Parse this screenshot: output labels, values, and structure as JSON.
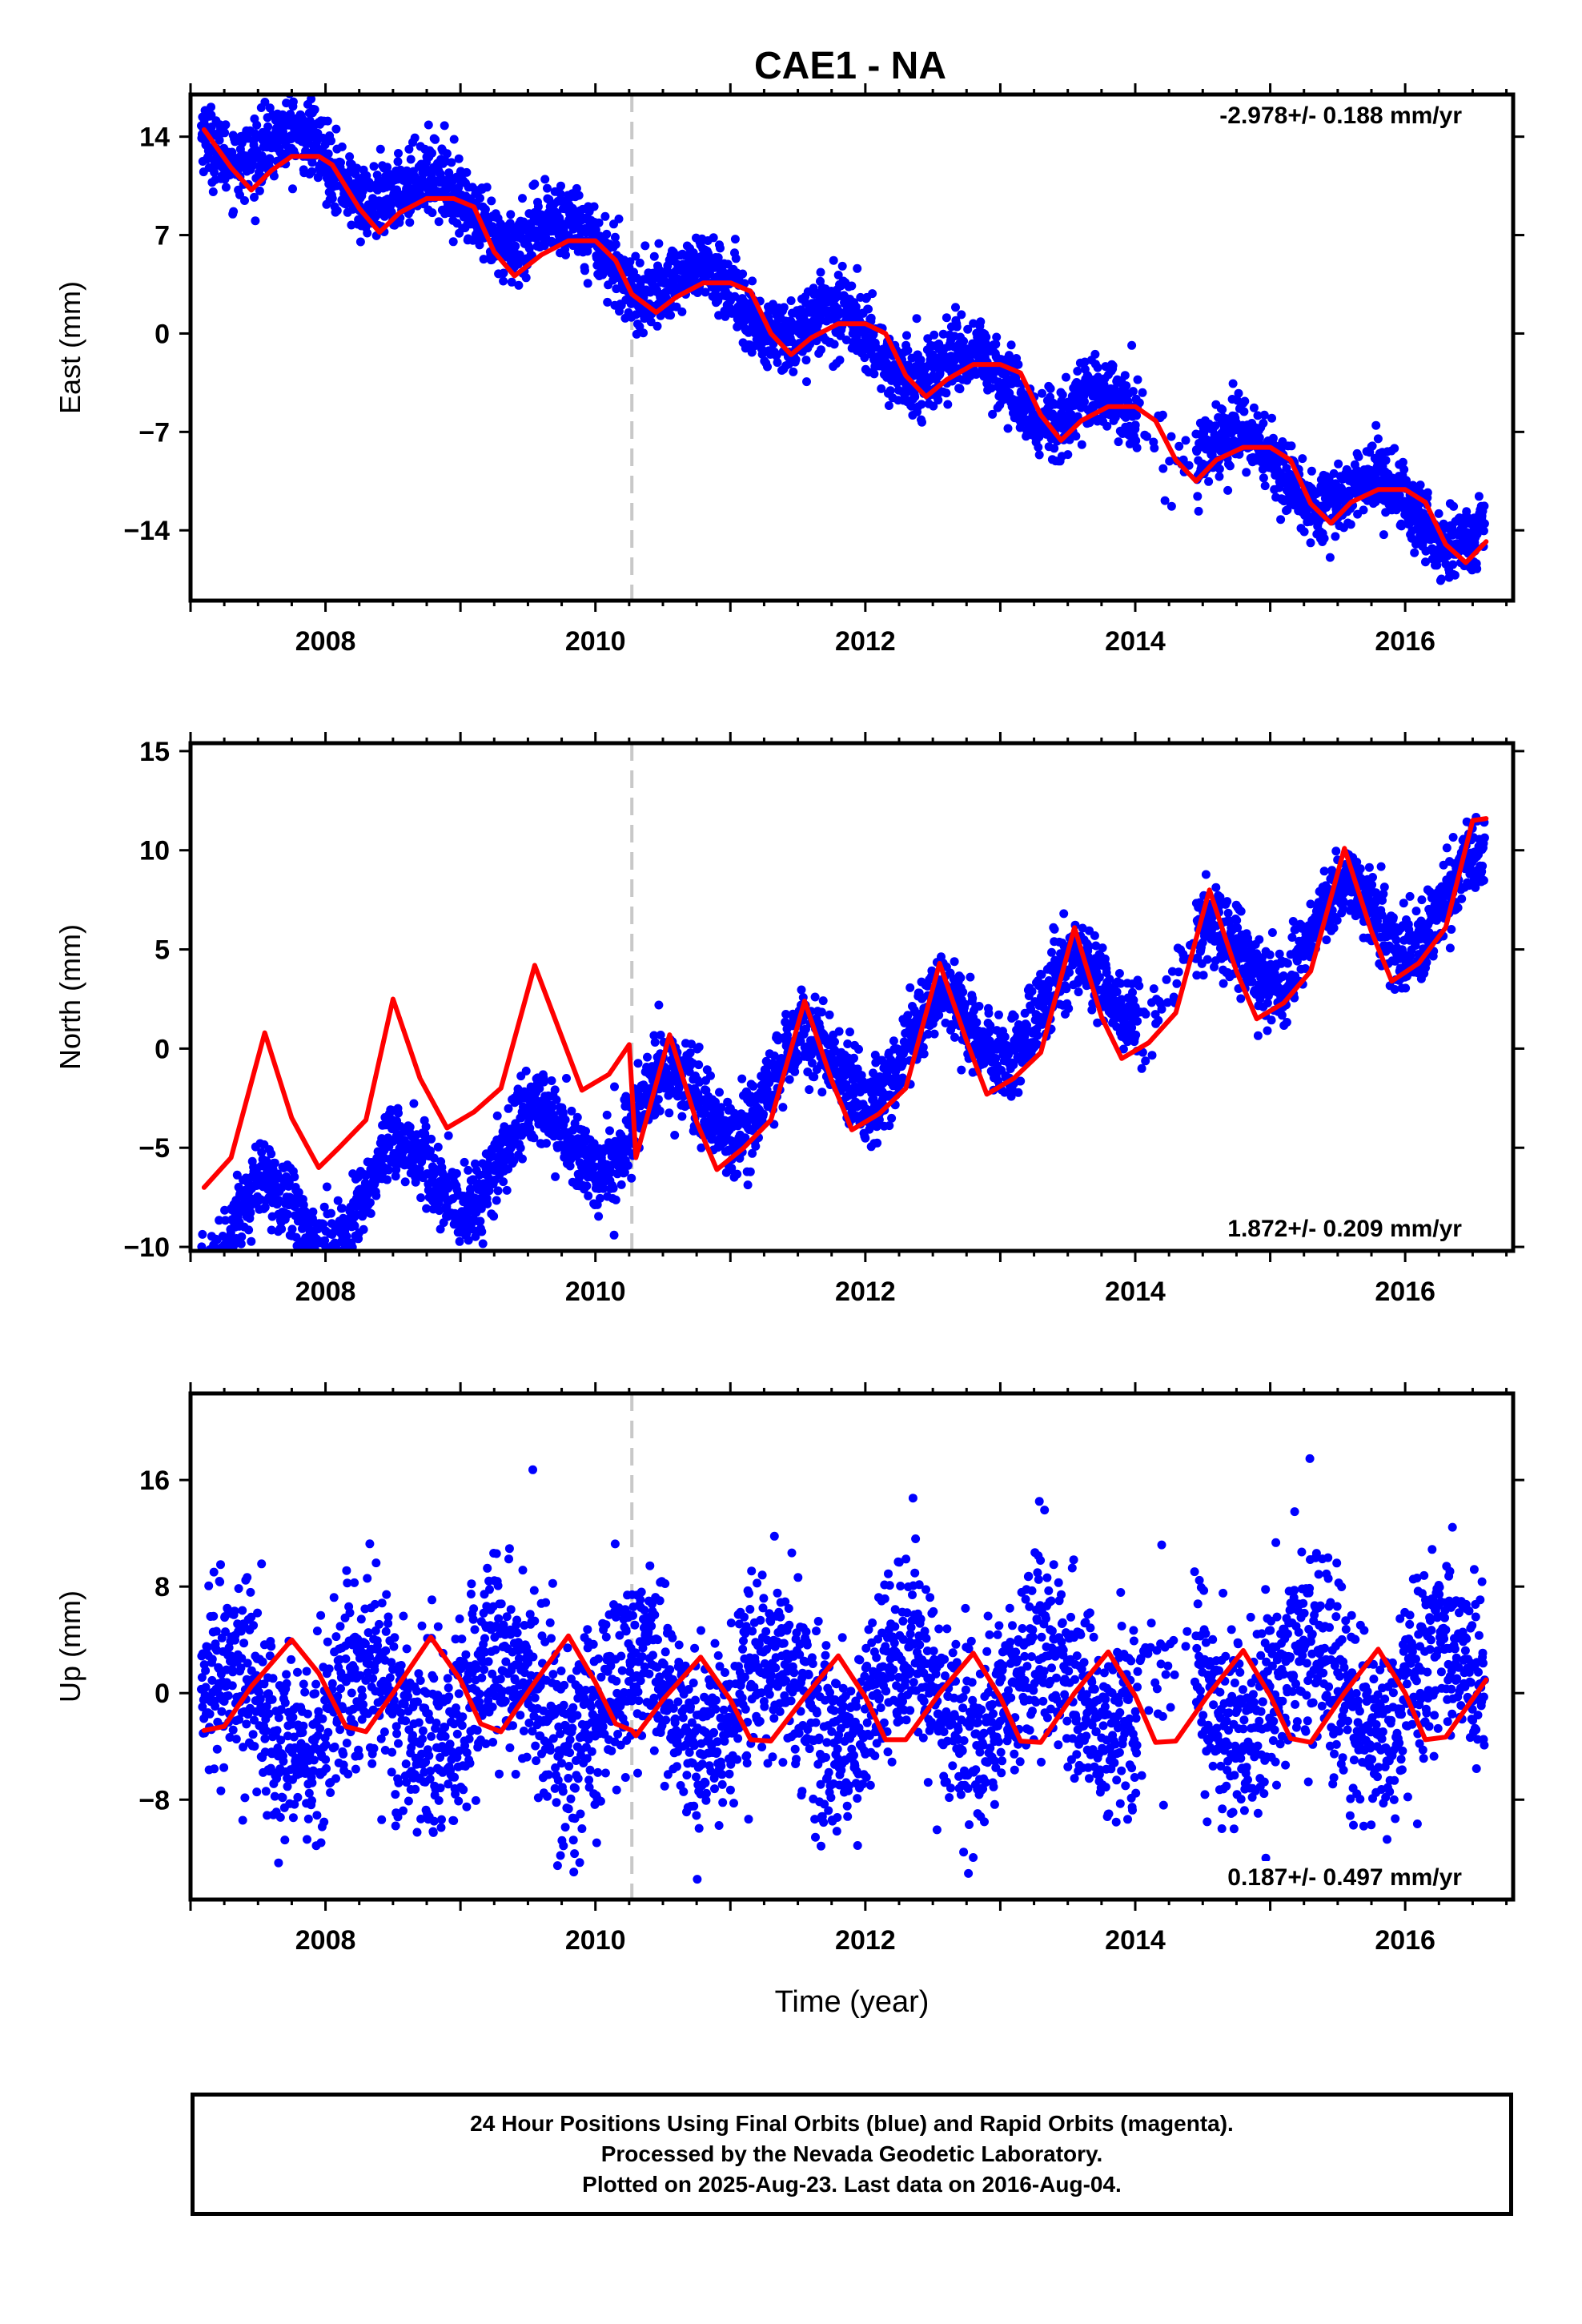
{
  "title": "CAE1 - NA",
  "colors": {
    "data": "#0000ff",
    "model": "#ff0000",
    "offset_line": "#c8c8c8",
    "frame": "#000000"
  },
  "chart_data": [
    {
      "type": "scatter",
      "component": "east",
      "ylabel": "East (mm)",
      "xlabel": "",
      "rate_label": "-2.978+/- 0.188 mm/yr",
      "rate_position": "top-right",
      "xlim": [
        2007.0,
        2016.8
      ],
      "ylim": [
        -19,
        17
      ],
      "xticks": [
        2008,
        2010,
        2012,
        2014,
        2016
      ],
      "yticks": [
        -14,
        -7,
        0,
        7,
        14
      ],
      "ytick_labels": [
        "−14",
        "−7",
        "0",
        "7",
        "14"
      ],
      "offset_epoch": 2010.27,
      "trend": {
        "rate": -2.978,
        "ref_epoch": 2012.0,
        "ref_value": 0.0
      },
      "annual": {
        "cos": 0.7,
        "sin": -1.6
      },
      "semiannual": {
        "cos": 0.0,
        "sin": 0.0
      },
      "noise_sd": 1.3,
      "model_curve": {
        "x": [
          2007.1,
          2007.3,
          2007.45,
          2007.6,
          2007.75,
          2007.95,
          2008.05,
          2008.25,
          2008.4,
          2008.55,
          2008.75,
          2008.95,
          2009.1,
          2009.25,
          2009.4,
          2009.6,
          2009.8,
          2010.0,
          2010.15,
          2010.27,
          2010.45,
          2010.6,
          2010.8,
          2011.0,
          2011.15,
          2011.3,
          2011.45,
          2011.6,
          2011.8,
          2012.0,
          2012.15,
          2012.3,
          2012.45,
          2012.6,
          2012.8,
          2013.0,
          2013.15,
          2013.3,
          2013.45,
          2013.6,
          2013.8,
          2014.0,
          2014.15,
          2014.3,
          2014.45,
          2014.6,
          2014.8,
          2015.0,
          2015.15,
          2015.3,
          2015.45,
          2015.6,
          2015.8,
          2016.0,
          2016.15,
          2016.3,
          2016.45,
          2016.6
        ],
        "y": [
          14.5,
          11.8,
          10.2,
          11.6,
          12.6,
          12.6,
          12.0,
          8.9,
          7.2,
          8.6,
          9.6,
          9.6,
          9.0,
          5.8,
          4.1,
          5.6,
          6.6,
          6.6,
          5.2,
          2.8,
          1.5,
          2.6,
          3.6,
          3.6,
          3.0,
          0.0,
          -1.5,
          -0.3,
          0.7,
          0.7,
          0.0,
          -3.0,
          -4.5,
          -3.3,
          -2.2,
          -2.2,
          -2.8,
          -5.8,
          -7.6,
          -6.2,
          -5.2,
          -5.2,
          -6.2,
          -9.0,
          -10.5,
          -9.0,
          -8.1,
          -8.1,
          -9.0,
          -12.1,
          -13.5,
          -12.0,
          -11.1,
          -11.1,
          -12.0,
          -15.0,
          -16.3,
          -14.8
        ]
      }
    },
    {
      "type": "scatter",
      "component": "north",
      "ylabel": "North (mm)",
      "xlabel": "",
      "rate_label": "1.872+/- 0.209 mm/yr",
      "rate_position": "bottom-right",
      "xlim": [
        2007.0,
        2016.8
      ],
      "ylim": [
        -10.2,
        15.4
      ],
      "xticks": [
        2008,
        2010,
        2012,
        2014,
        2016
      ],
      "yticks": [
        -10,
        -5,
        0,
        5,
        10,
        15
      ],
      "ytick_labels": [
        "−10",
        "−5",
        "0",
        "5",
        "10",
        "15"
      ],
      "offset_epoch": 2010.27,
      "trend": {
        "rate": 1.872,
        "ref_epoch": 2012.0,
        "ref_value": -0.5
      },
      "annual": {
        "cos": -2.0,
        "sin": -0.6
      },
      "semiannual": {
        "cos": 0.0,
        "sin": 0.0
      },
      "noise_sd": 1.0,
      "model_curve": {
        "x": [
          2007.1,
          2007.3,
          2007.55,
          2007.75,
          2007.95,
          2008.1,
          2008.3,
          2008.5,
          2008.7,
          2008.9,
          2009.1,
          2009.3,
          2009.55,
          2009.75,
          2009.9,
          2010.1,
          2010.25,
          2010.27,
          2010.3,
          2010.55,
          2010.75,
          2010.9,
          2011.1,
          2011.3,
          2011.55,
          2011.75,
          2011.9,
          2012.1,
          2012.3,
          2012.55,
          2012.75,
          2012.9,
          2013.1,
          2013.3,
          2013.55,
          2013.75,
          2013.9,
          2014.1,
          2014.3,
          2014.55,
          2014.75,
          2014.9,
          2015.1,
          2015.3,
          2015.55,
          2015.75,
          2015.9,
          2016.1,
          2016.3,
          2016.5,
          2016.6
        ],
        "y": [
          -7.0,
          -5.5,
          0.8,
          -3.5,
          -6.0,
          -5.0,
          -3.6,
          2.5,
          -1.5,
          -4.0,
          -3.2,
          -2.0,
          4.2,
          0.6,
          -2.1,
          -1.3,
          0.2,
          -2.0,
          -5.5,
          0.7,
          -3.7,
          -6.1,
          -5.0,
          -3.6,
          2.4,
          -1.6,
          -4.1,
          -3.3,
          -2.0,
          4.3,
          0.4,
          -2.3,
          -1.5,
          -0.2,
          6.1,
          1.6,
          -0.5,
          0.3,
          1.8,
          8.0,
          3.9,
          1.5,
          2.3,
          3.9,
          10.1,
          5.9,
          3.4,
          4.3,
          6.1,
          11.5,
          11.6
        ]
      }
    },
    {
      "type": "scatter",
      "component": "up",
      "ylabel": "Up (mm)",
      "xlabel": "Time (year)",
      "rate_label": "0.187+/- 0.497 mm/yr",
      "rate_position": "bottom-right",
      "xlim": [
        2007.0,
        2016.8
      ],
      "ylim": [
        -15.5,
        22.5
      ],
      "xticks": [
        2008,
        2010,
        2012,
        2014,
        2016
      ],
      "yticks": [
        -8,
        0,
        8,
        16
      ],
      "ytick_labels": [
        "−8",
        "0",
        "8",
        "16"
      ],
      "offset_epoch": 2010.27,
      "trend": {
        "rate": 0.187,
        "ref_epoch": 2012.0,
        "ref_value": -0.3
      },
      "annual": {
        "cos": -1.0,
        "sin": 3.3
      },
      "semiannual": {
        "cos": 0.0,
        "sin": 0.0
      },
      "noise_sd": 3.5,
      "model_curve": {
        "x": [
          2007.1,
          2007.25,
          2007.45,
          2007.75,
          2007.95,
          2008.15,
          2008.3,
          2008.5,
          2008.78,
          2009.0,
          2009.15,
          2009.3,
          2009.55,
          2009.8,
          2010.0,
          2010.15,
          2010.27,
          2010.3,
          2010.5,
          2010.78,
          2011.0,
          2011.15,
          2011.3,
          2011.55,
          2011.8,
          2012.0,
          2012.15,
          2012.3,
          2012.55,
          2012.8,
          2013.0,
          2013.15,
          2013.3,
          2013.55,
          2013.8,
          2014.0,
          2014.15,
          2014.3,
          2014.55,
          2014.8,
          2015.0,
          2015.15,
          2015.3,
          2015.55,
          2015.8,
          2016.0,
          2016.15,
          2016.3,
          2016.6
        ],
        "y": [
          -2.8,
          -2.5,
          0.5,
          4.0,
          1.5,
          -2.5,
          -2.9,
          0.0,
          4.2,
          1.0,
          -2.3,
          -2.9,
          0.8,
          4.3,
          0.8,
          -2.3,
          -2.8,
          -3.2,
          -0.5,
          2.7,
          -0.5,
          -3.5,
          -3.6,
          -0.3,
          2.8,
          -0.3,
          -3.5,
          -3.5,
          0.0,
          3.0,
          -0.3,
          -3.6,
          -3.7,
          0.0,
          3.1,
          -0.2,
          -3.7,
          -3.6,
          0.0,
          3.2,
          -0.2,
          -3.4,
          -3.7,
          0.0,
          3.3,
          0.0,
          -3.5,
          -3.3,
          1.0
        ]
      }
    }
  ],
  "caption": {
    "line1": "24 Hour Positions Using Final Orbits (blue) and Rapid Orbits (magenta).",
    "line2": "Processed by the Nevada Geodetic Laboratory.",
    "line3": "Plotted on 2025-Aug-23. Last data on 2016-Aug-04."
  }
}
